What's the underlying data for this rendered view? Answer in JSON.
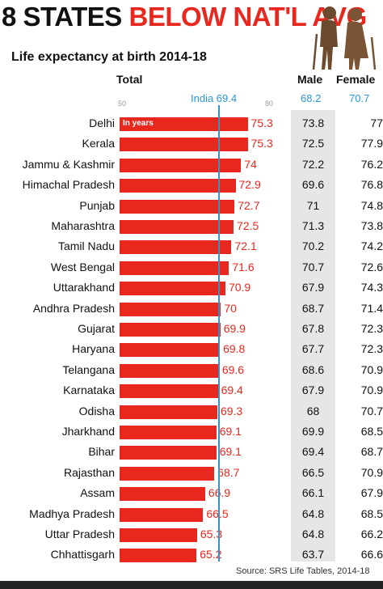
{
  "header": {
    "title_part1": "8 STATES",
    "title_part2": "BELOW NAT'L AVG",
    "subtitle": "Life expectancy at birth 2014-18"
  },
  "columns": {
    "total": "Total",
    "male": "Male",
    "female": "Female"
  },
  "national_average": {
    "label": "India 69.4",
    "male": "68.2",
    "female": "70.7"
  },
  "axis": {
    "min_label": "50",
    "max_label": "80"
  },
  "units_label": "In years",
  "source": "Source: SRS Life Tables, 2014-18",
  "colors": {
    "bar": "#e8281f",
    "accent": "#2b96d6",
    "male_column": "#e6e6e6"
  },
  "icons": [
    "elderly-couple-icon"
  ],
  "chart_data": {
    "type": "bar",
    "orientation": "horizontal",
    "xlim": [
      50,
      80
    ],
    "reference_line": {
      "label": "India",
      "value": 69.4
    },
    "categories": [
      "Delhi",
      "Kerala",
      "Jammu & Kashmir",
      "Himachal Pradesh",
      "Punjab",
      "Maharashtra",
      "Tamil Nadu",
      "West Bengal",
      "Uttarakhand",
      "Andhra Pradesh",
      "Gujarat",
      "Haryana",
      "Telangana",
      "Karnataka",
      "Odisha",
      "Jharkhand",
      "Bihar",
      "Rajasthan",
      "Assam",
      "Madhya Pradesh",
      "Uttar Pradesh",
      "Chhattisgarh"
    ],
    "series": [
      {
        "name": "Total",
        "values": [
          75.3,
          75.3,
          74,
          72.9,
          72.7,
          72.5,
          72.1,
          71.6,
          70.9,
          70,
          69.9,
          69.8,
          69.6,
          69.4,
          69.3,
          69.1,
          69.1,
          68.7,
          66.9,
          66.5,
          65.3,
          65.2
        ]
      },
      {
        "name": "Male",
        "values": [
          73.8,
          72.5,
          72.2,
          69.6,
          71,
          71.3,
          70.2,
          70.7,
          67.9,
          68.7,
          67.8,
          67.7,
          68.6,
          67.9,
          68,
          69.9,
          69.4,
          66.5,
          66.1,
          64.8,
          64.8,
          63.7
        ]
      },
      {
        "name": "Female",
        "values": [
          77,
          77.9,
          76.2,
          76.8,
          74.8,
          73.8,
          74.2,
          72.6,
          74.3,
          71.4,
          72.3,
          72.3,
          70.9,
          70.9,
          70.7,
          68.5,
          68.7,
          70.9,
          67.9,
          68.5,
          66.2,
          66.6
        ]
      }
    ]
  }
}
